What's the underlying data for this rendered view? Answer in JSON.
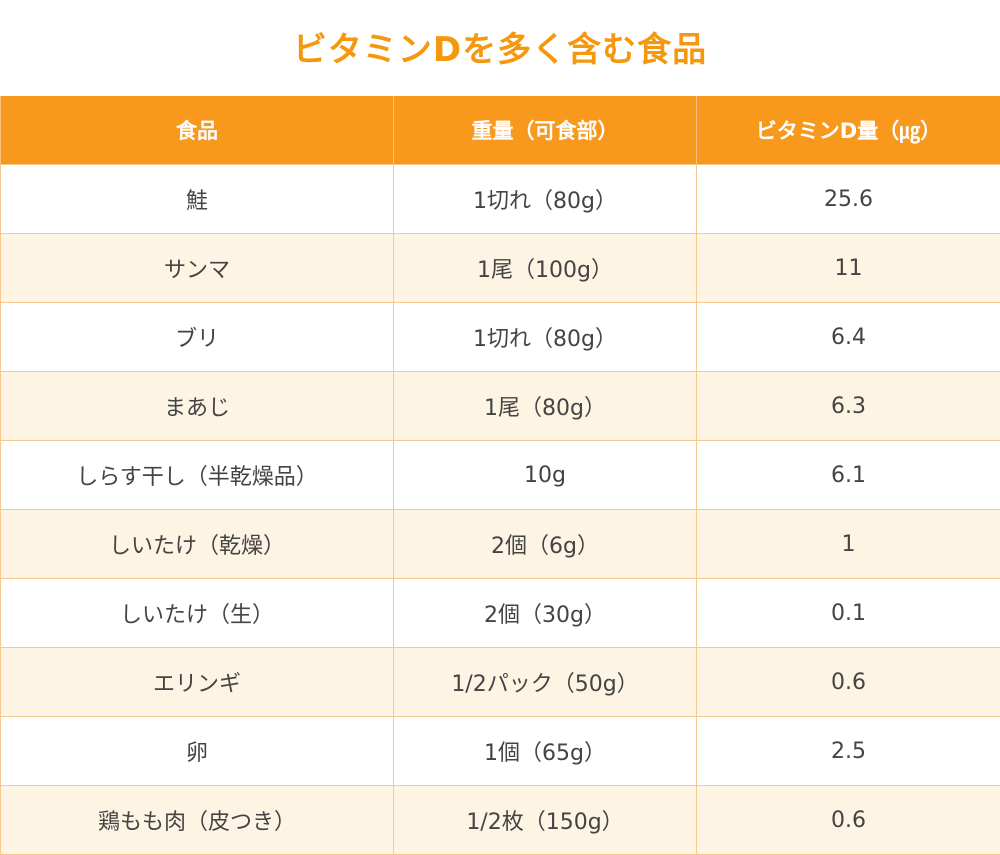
{
  "title": "ビタミンDを多く含む食品",
  "colors": {
    "accent": "#f5980f",
    "header_bg": "#f8981d",
    "row_alt_bg": "#fdf4e4",
    "border": "#f5c98f"
  },
  "table": {
    "headers": [
      "食品",
      "重量（可食部）",
      "ビタミンD量（㎍）"
    ],
    "rows": [
      [
        "鮭",
        "1切れ（80g）",
        "25.6"
      ],
      [
        "サンマ",
        "1尾（100g）",
        "11"
      ],
      [
        "ブリ",
        "1切れ（80g）",
        "6.4"
      ],
      [
        "まあじ",
        "1尾（80g）",
        "6.3"
      ],
      [
        "しらす干し（半乾燥品）",
        "10g",
        "6.1"
      ],
      [
        "しいたけ（乾燥）",
        "2個（6g）",
        "1"
      ],
      [
        "しいたけ（生）",
        "2個（30g）",
        "0.1"
      ],
      [
        "エリンギ",
        "1/2パック（50g）",
        "0.6"
      ],
      [
        "卵",
        "1個（65g）",
        "2.5"
      ],
      [
        "鶏もも肉（皮つき）",
        "1/2枚（150g）",
        "0.6"
      ]
    ]
  }
}
